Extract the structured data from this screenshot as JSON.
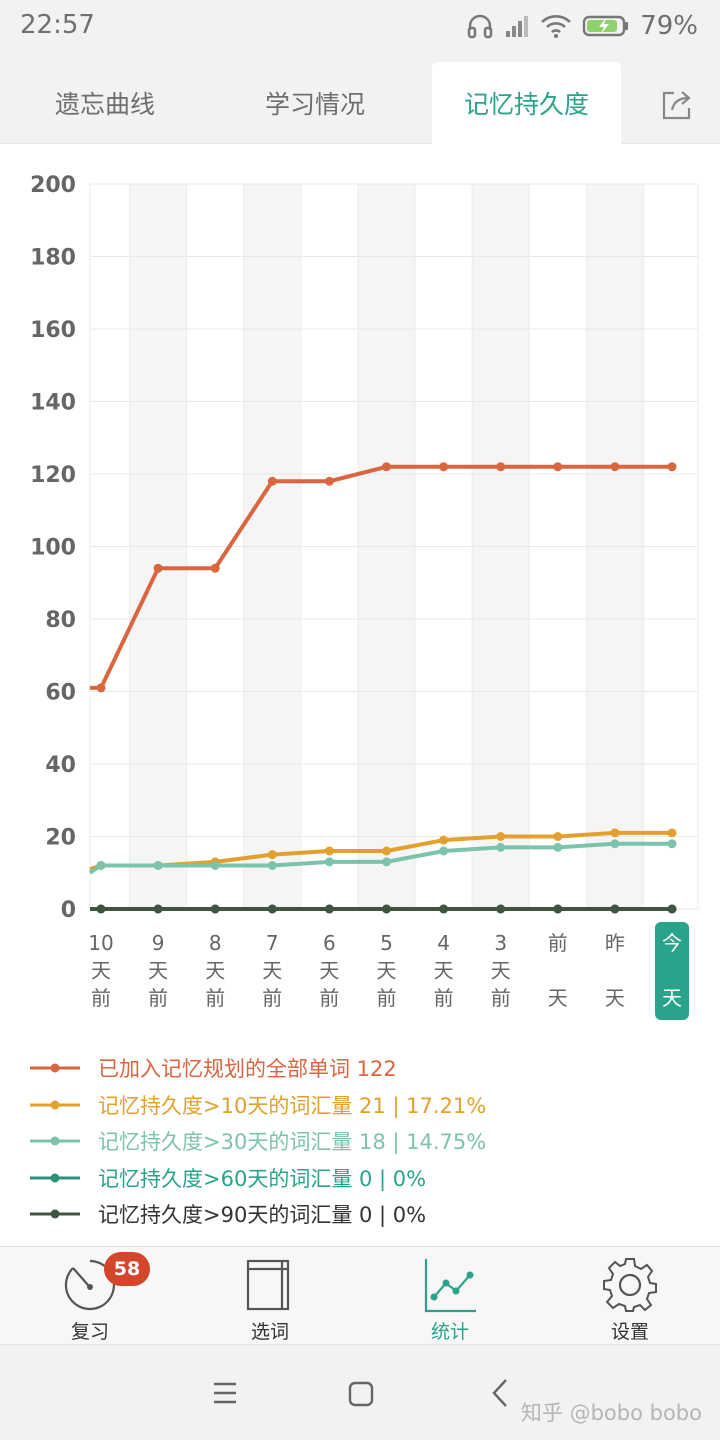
{
  "status_bar": {
    "time": "22:57",
    "battery": "79%"
  },
  "tabs": [
    {
      "label": "遗忘曲线",
      "active": false
    },
    {
      "label": "学习情况",
      "active": false
    },
    {
      "label": "记忆持久度",
      "active": true
    }
  ],
  "chart_data": {
    "type": "line",
    "ylim": [
      0,
      200
    ],
    "yticks": [
      "0",
      "20",
      "40",
      "60",
      "80",
      "100",
      "120",
      "140",
      "160",
      "180",
      "200"
    ],
    "categories": [
      [
        "10",
        "天",
        "前"
      ],
      [
        "9",
        "天",
        "前"
      ],
      [
        "8",
        "天",
        "前"
      ],
      [
        "7",
        "天",
        "前"
      ],
      [
        "6",
        "天",
        "前"
      ],
      [
        "5",
        "天",
        "前"
      ],
      [
        "4",
        "天",
        "前"
      ],
      [
        "3",
        "天",
        "前"
      ],
      [
        "前",
        "",
        "天"
      ],
      [
        "昨",
        "",
        "天"
      ],
      [
        "今",
        "",
        "天"
      ]
    ],
    "highlight_category": 10,
    "grid": true,
    "series": [
      {
        "color": "#d9663f",
        "start": 61,
        "values": [
          61,
          94,
          94,
          118,
          118,
          122,
          122,
          122,
          122,
          122,
          122
        ]
      },
      {
        "color": "#e4a02e",
        "start": 11,
        "values": [
          12,
          12,
          13,
          15,
          16,
          16,
          19,
          20,
          20,
          21,
          21
        ]
      },
      {
        "color": "#7cc3ab",
        "start": 10,
        "values": [
          12,
          12,
          12,
          12,
          13,
          13,
          16,
          17,
          17,
          18,
          18
        ]
      },
      {
        "color": "#2f8f79",
        "start": 0,
        "values": [
          0,
          0,
          0,
          0,
          0,
          0,
          0,
          0,
          0,
          0,
          0
        ]
      },
      {
        "color": "#3f5540",
        "start": 0,
        "values": [
          0,
          0,
          0,
          0,
          0,
          0,
          0,
          0,
          0,
          0,
          0
        ]
      }
    ]
  },
  "legend": [
    {
      "label": "已加入记忆规划的全部单词 122",
      "color": "#d9663f",
      "text_color": "#d9663f"
    },
    {
      "label": "记忆持久度>10天的词汇量 21 | 17.21%",
      "color": "#e4a02e",
      "text_color": "#e4a02e"
    },
    {
      "label": "记忆持久度>30天的词汇量 18 | 14.75%",
      "color": "#7cc3ab",
      "text_color": "#7cc3ab"
    },
    {
      "label": "记忆持久度>60天的词汇量 0 | 0%",
      "color": "#2f8f79",
      "text_color": "#2aa38c"
    },
    {
      "label": "记忆持久度>90天的词汇量 0 | 0%",
      "color": "#3f5540",
      "text_color": "#333333"
    }
  ],
  "bottom_nav": [
    {
      "label": "复习",
      "icon": "timer-icon",
      "badge": "58"
    },
    {
      "label": "选词",
      "icon": "book-icon"
    },
    {
      "label": "统计",
      "icon": "stats-chart-icon",
      "active": true
    },
    {
      "label": "设置",
      "icon": "gear-icon"
    }
  ],
  "watermark": "知乎 @bobo bobo",
  "colors": {
    "accent": "#2aa38c",
    "badge": "#d4462b"
  }
}
